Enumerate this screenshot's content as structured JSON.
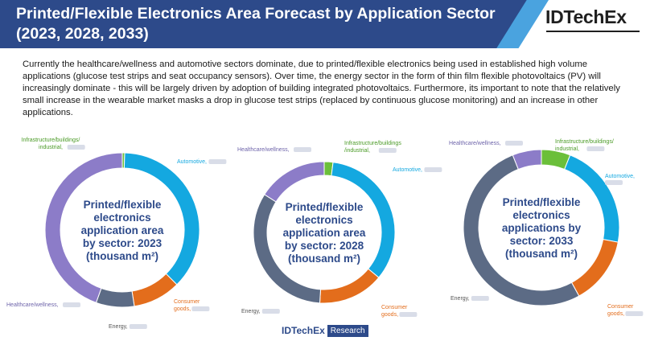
{
  "header": {
    "title": "Printed/Flexible Electronics Area Forecast by Application Sector (2023, 2028, 2033)",
    "logo": "IDTechEx"
  },
  "description": "Currently the healthcare/wellness and automotive sectors dominate, due to printed/flexible electronics being used in established high volume applications (glucose test strips and seat occupancy sensors). Over time, the energy sector in the form of thin film flexible photovoltaics (PV) will increasingly dominate - this will be largely driven by adoption of building integrated photovoltaics. Furthermore, its important to note that the relatively small increase in the wearable market masks a drop in glucose test strips (replaced by continuous glucose monitoring) and an increase in other applications.",
  "footer": {
    "brand": "IDTechEx",
    "tag": "Research"
  },
  "chart_data": [
    {
      "type": "pie",
      "center_label": [
        "Printed/flexible",
        "electronics",
        "application area",
        "by sector: 2023",
        "(thousand m²)"
      ],
      "segments": [
        {
          "name": "Infrastructure/buildings/ industrial,",
          "lines": [
            "Infrastructure/buildings/",
            "industrial,"
          ],
          "value": 0.5,
          "color": "#6bbf3a",
          "label_color": "#4a9a26"
        },
        {
          "name": "Automotive,",
          "lines": [
            "Automotive,"
          ],
          "value": 37,
          "color": "#14a8e0",
          "label_color": "#14a8e0"
        },
        {
          "name": "Consumer goods,",
          "lines": [
            "Consumer",
            "goods,"
          ],
          "value": 10,
          "color": "#e36d1c",
          "label_color": "#e36d1c"
        },
        {
          "name": "Energy,",
          "lines": [
            "Energy,"
          ],
          "value": 8,
          "color": "#5c6b85",
          "label_color": "#555555"
        },
        {
          "name": "Healthcare/wellness,",
          "lines": [
            "Healthcare/wellness,"
          ],
          "value": 44.5,
          "color": "#8c7cc8",
          "label_color": "#6e64aa"
        }
      ]
    },
    {
      "type": "pie",
      "center_label": [
        "Printed/flexible",
        "electronics",
        "application area",
        "by sector: 2028",
        "(thousand m²)"
      ],
      "segments": [
        {
          "name": "Infrastructure/buildings /industrial,",
          "lines": [
            "Infrastructure/buildings",
            "/industrial,"
          ],
          "value": 2,
          "color": "#6bbf3a",
          "label_color": "#4a9a26"
        },
        {
          "name": "Automotive,",
          "lines": [
            "Automotive,"
          ],
          "value": 34,
          "color": "#14a8e0",
          "label_color": "#14a8e0"
        },
        {
          "name": "Consumer goods,",
          "lines": [
            "Consumer",
            "goods,"
          ],
          "value": 15,
          "color": "#e36d1c",
          "label_color": "#e36d1c"
        },
        {
          "name": "Energy,",
          "lines": [
            "Energy,"
          ],
          "value": 33,
          "color": "#5c6b85",
          "label_color": "#555555"
        },
        {
          "name": "Healthcare/wellness,",
          "lines": [
            "Healthcare/wellness,"
          ],
          "value": 16,
          "color": "#8c7cc8",
          "label_color": "#6e64aa"
        }
      ]
    },
    {
      "type": "pie",
      "center_label": [
        "Printed/flexible",
        "electronics",
        "applications by",
        "sector: 2033",
        "(thousand m²)"
      ],
      "segments": [
        {
          "name": "Infrastructure/buildings/ industrial,",
          "lines": [
            "Infrastructure/buildings/",
            "industrial,"
          ],
          "value": 6,
          "color": "#6bbf3a",
          "label_color": "#4a9a26"
        },
        {
          "name": "Automotive,",
          "lines": [
            "Automotive,"
          ],
          "value": 22,
          "color": "#14a8e0",
          "label_color": "#14a8e0"
        },
        {
          "name": "Consumer goods,",
          "lines": [
            "Consumer",
            "goods,"
          ],
          "value": 14,
          "color": "#e36d1c",
          "label_color": "#e36d1c"
        },
        {
          "name": "Energy,",
          "lines": [
            "Energy,"
          ],
          "value": 52,
          "color": "#5c6b85",
          "label_color": "#555555"
        },
        {
          "name": "Healthcare/wellness,",
          "lines": [
            "Healthcare/wellness,"
          ],
          "value": 6,
          "color": "#8c7cc8",
          "label_color": "#6e64aa"
        }
      ]
    }
  ]
}
